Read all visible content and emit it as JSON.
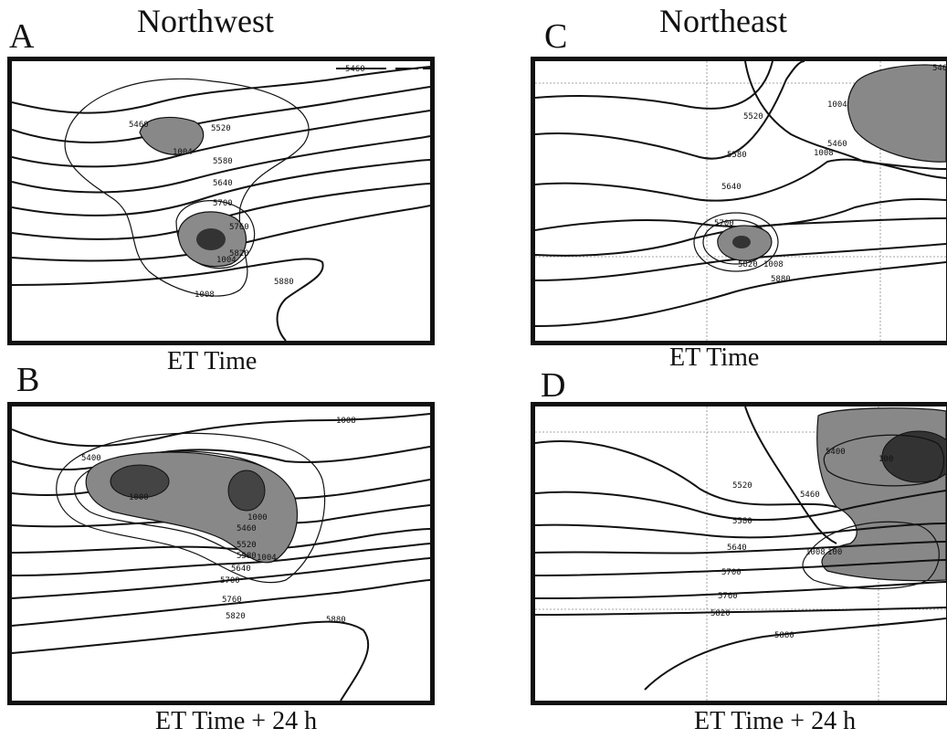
{
  "figure": {
    "columns": [
      {
        "title": "Northwest"
      },
      {
        "title": "Northeast"
      }
    ],
    "panels": [
      {
        "id": "A",
        "caption": "ET Time",
        "labels": [
          "5460",
          "5520",
          "5580",
          "5640",
          "5700",
          "5760",
          "5820",
          "5880",
          "1004",
          "1008",
          "1000"
        ]
      },
      {
        "id": "B",
        "caption": "ET Time + 24 h",
        "labels": [
          "1008",
          "5400",
          "1000",
          "5460",
          "5520",
          "5580",
          "5640",
          "5700",
          "5760",
          "5820",
          "5880",
          "1004",
          "1000"
        ]
      },
      {
        "id": "C",
        "caption": "ET Time",
        "labels": [
          "546",
          "1004",
          "5520",
          "5460",
          "1008",
          "5580",
          "5640",
          "5700",
          "5820",
          "1008",
          "5880"
        ]
      },
      {
        "id": "D",
        "caption": "ET Time + 24 h",
        "labels": [
          "5400",
          "100",
          "5520",
          "5460",
          "5580",
          "5640",
          "1008",
          "100",
          "5700",
          "5760",
          "5820",
          "5880"
        ]
      }
    ]
  }
}
